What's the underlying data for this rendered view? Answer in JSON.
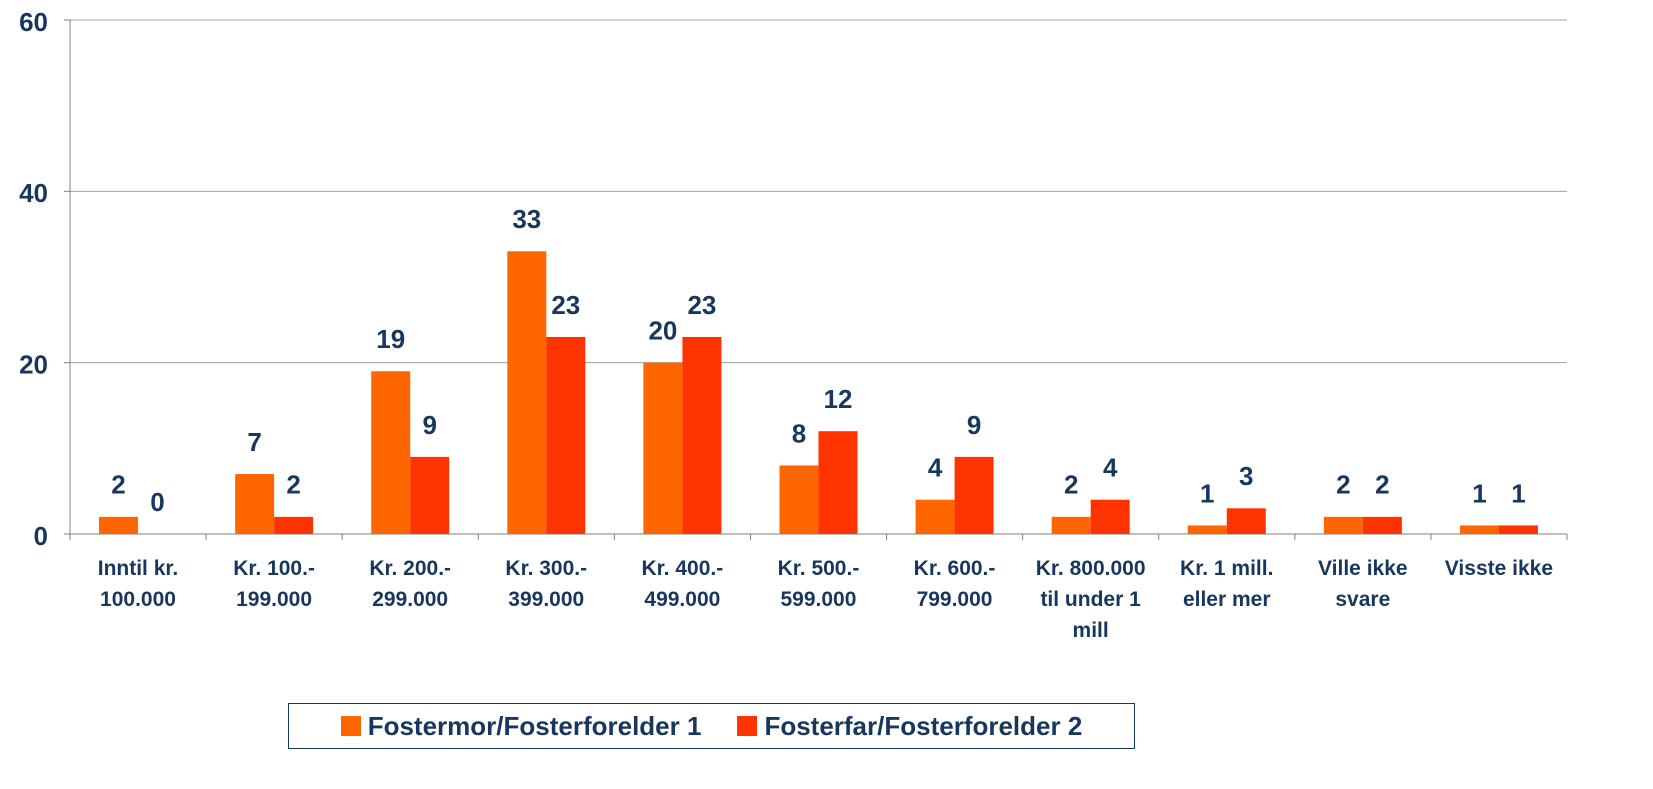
{
  "chart_data": {
    "type": "bar",
    "categories": [
      "Inntil kr.\n100.000",
      "Kr. 100.-\n199.000",
      "Kr. 200.-\n299.000",
      "Kr. 300.-\n399.000",
      "Kr. 400.-\n499.000",
      "Kr. 500.-\n599.000",
      "Kr. 600.-\n799.000",
      "Kr. 800.000\ntil under 1\nmill",
      "Kr. 1 mill.\neller mer",
      "Ville ikke\nsvare",
      "Visste ikke"
    ],
    "series": [
      {
        "name": "Fostermor/Fosterforelder 1",
        "color": "#ff6600",
        "values": [
          2,
          7,
          19,
          33,
          20,
          8,
          4,
          2,
          1,
          2,
          1
        ]
      },
      {
        "name": "Fosterfar/Fosterforelder 2",
        "color": "#ff3300",
        "values": [
          0,
          2,
          9,
          23,
          23,
          12,
          9,
          4,
          3,
          2,
          1
        ]
      }
    ],
    "ylim": [
      0,
      60
    ],
    "yticks": [
      0,
      20,
      40,
      60
    ],
    "grid": true,
    "legend": "bottom"
  }
}
